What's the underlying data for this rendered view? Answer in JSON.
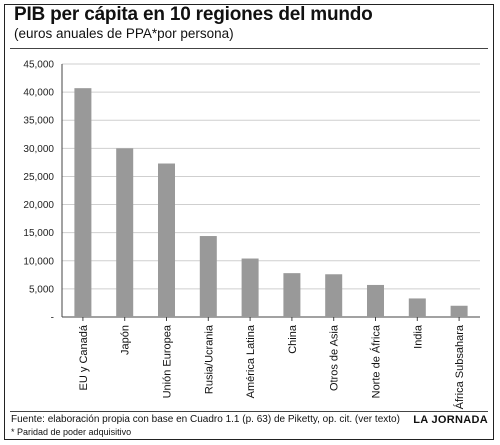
{
  "colors": {
    "bar": "#999999",
    "grid": "#cfcfcf",
    "axis": "#444444"
  },
  "header": {
    "title": "PIB per cápita en 10 regiones del mundo",
    "subtitle": "(euros anuales de PPA*por persona)"
  },
  "footer": {
    "source": "Fuente: elaboración propia con base en Cuadro 1.1 (p. 63) de Piketty, op. cit. (ver texto)",
    "note": "* Paridad de poder adquisitivo",
    "brand": "LA JORNADA"
  },
  "chart_data": {
    "type": "bar",
    "title": "PIB per cápita en 10 regiones del mundo",
    "subtitle": "(euros anuales de PPA*por persona)",
    "categories": [
      "EU y Canadá",
      "Japón",
      "Unión Europea",
      "Rusia/Ucrania",
      "América Latina",
      "China",
      "Otros de Asia",
      "Norte de África",
      "India",
      "África Subsahara"
    ],
    "values": [
      40700,
      30000,
      27300,
      14400,
      10400,
      7800,
      7600,
      5700,
      3300,
      2000
    ],
    "ylim": [
      0,
      45000
    ],
    "yticks": [
      0,
      5000,
      10000,
      15000,
      20000,
      25000,
      30000,
      35000,
      40000,
      45000
    ],
    "ytick_labels": [
      "-",
      "5,000",
      "10,000",
      "15,000",
      "20,000",
      "25,000",
      "30,000",
      "35,000",
      "40,000",
      "45,000"
    ],
    "grid": true,
    "xlabel": "",
    "ylabel": ""
  }
}
